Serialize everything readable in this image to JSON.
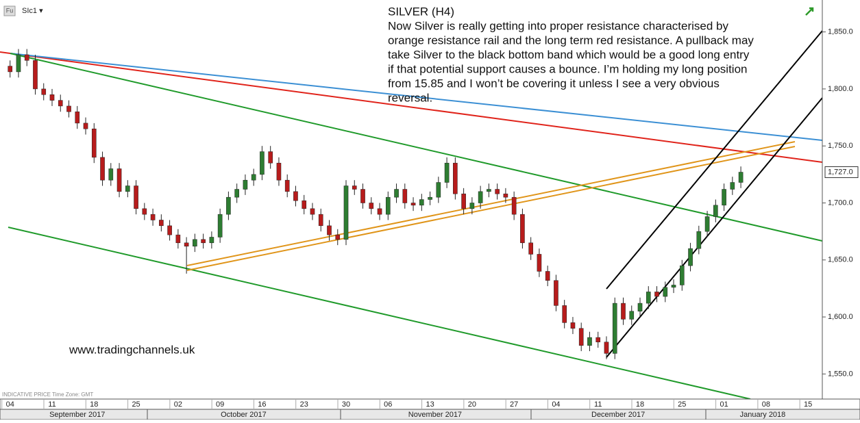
{
  "chart_data": {
    "type": "candlestick",
    "symbol_badge": "Fu",
    "symbol": "SIc1 ▾",
    "title": "SILVER (H4)",
    "annotation_lines": [
      "Now Silver is really getting into proper resistance characterised by",
      "orange resistance rail and the long term red resistance. A pullback may",
      "take Silver to the black bottom band which would be a good long entry",
      "if that potential support causes a bounce. I’m holding my long position",
      "from 15.85 and I won’t be covering  it unless I see a very obvious",
      "reversal."
    ],
    "watermark": "www.tradingchannels.uk",
    "footer": "INDICATIVE PRICE   Time Zone: GMT",
    "up_color": "#2e7d32",
    "down_color": "#b71c1c",
    "wick_color": "#222222",
    "open": [
      1820,
      1815,
      1830,
      1825,
      1800,
      1795,
      1790,
      1785,
      1780,
      1770,
      1765,
      1740,
      1720,
      1730,
      1710,
      1715,
      1695,
      1690,
      1685,
      1680,
      1672,
      1665,
      1662,
      1668,
      1665,
      1670,
      1690,
      1705,
      1712,
      1720,
      1725,
      1745,
      1735,
      1720,
      1710,
      1702,
      1695,
      1690,
      1680,
      1672,
      1668,
      1715,
      1712,
      1700,
      1695,
      1690,
      1705,
      1712,
      1700,
      1698,
      1703,
      1705,
      1718,
      1735,
      1708,
      1695,
      1700,
      1710,
      1712,
      1708,
      1705,
      1690,
      1665,
      1655,
      1640,
      1632,
      1610,
      1595,
      1590,
      1575,
      1582,
      1578,
      1568,
      1612,
      1598,
      1605,
      1612,
      1622,
      1618,
      1626,
      1628,
      1645,
      1660,
      1675,
      1688,
      1698,
      1712,
      1718
    ],
    "high": [
      1825,
      1835,
      1835,
      1830,
      1805,
      1800,
      1795,
      1790,
      1785,
      1775,
      1770,
      1745,
      1735,
      1735,
      1720,
      1720,
      1700,
      1695,
      1690,
      1685,
      1677,
      1670,
      1673,
      1673,
      1675,
      1695,
      1710,
      1717,
      1725,
      1730,
      1750,
      1750,
      1740,
      1725,
      1715,
      1707,
      1700,
      1695,
      1685,
      1677,
      1720,
      1720,
      1717,
      1705,
      1700,
      1710,
      1717,
      1717,
      1705,
      1708,
      1710,
      1723,
      1740,
      1740,
      1713,
      1705,
      1715,
      1717,
      1717,
      1713,
      1710,
      1695,
      1670,
      1660,
      1645,
      1637,
      1615,
      1600,
      1595,
      1587,
      1587,
      1583,
      1617,
      1617,
      1610,
      1617,
      1627,
      1627,
      1631,
      1633,
      1650,
      1665,
      1680,
      1693,
      1703,
      1717,
      1723,
      1732
    ],
    "low": [
      1810,
      1810,
      1820,
      1795,
      1790,
      1785,
      1780,
      1775,
      1765,
      1760,
      1735,
      1715,
      1715,
      1705,
      1705,
      1690,
      1685,
      1680,
      1675,
      1667,
      1660,
      1638,
      1657,
      1660,
      1660,
      1665,
      1685,
      1700,
      1707,
      1715,
      1720,
      1730,
      1715,
      1705,
      1697,
      1690,
      1685,
      1675,
      1667,
      1663,
      1663,
      1707,
      1695,
      1690,
      1685,
      1685,
      1700,
      1695,
      1693,
      1693,
      1698,
      1700,
      1713,
      1703,
      1690,
      1690,
      1695,
      1705,
      1703,
      1700,
      1685,
      1660,
      1650,
      1635,
      1627,
      1605,
      1590,
      1585,
      1570,
      1570,
      1573,
      1563,
      1563,
      1593,
      1593,
      1600,
      1607,
      1613,
      1613,
      1621,
      1623,
      1640,
      1655,
      1670,
      1683,
      1693,
      1707,
      1713
    ],
    "close": [
      1815,
      1830,
      1825,
      1800,
      1795,
      1790,
      1785,
      1780,
      1770,
      1765,
      1740,
      1720,
      1730,
      1710,
      1715,
      1695,
      1690,
      1685,
      1680,
      1672,
      1665,
      1662,
      1668,
      1665,
      1670,
      1690,
      1705,
      1712,
      1720,
      1725,
      1745,
      1735,
      1720,
      1710,
      1702,
      1695,
      1690,
      1680,
      1672,
      1668,
      1715,
      1712,
      1700,
      1695,
      1690,
      1705,
      1712,
      1700,
      1698,
      1703,
      1705,
      1718,
      1735,
      1708,
      1695,
      1700,
      1710,
      1712,
      1708,
      1705,
      1690,
      1665,
      1655,
      1640,
      1632,
      1610,
      1595,
      1590,
      1575,
      1582,
      1578,
      1568,
      1612,
      1598,
      1605,
      1612,
      1622,
      1618,
      1626,
      1628,
      1645,
      1660,
      1675,
      1688,
      1698,
      1712,
      1718,
      1727
    ],
    "last_price": {
      "value": 1727,
      "label": "1,727.0"
    },
    "ylim": [
      1528,
      1878
    ],
    "yticks": [
      {
        "value": 1550,
        "label": "1,550.0"
      },
      {
        "value": 1600,
        "label": "1,600.0"
      },
      {
        "value": 1650,
        "label": "1,650.0"
      },
      {
        "value": 1700,
        "label": "1,700.0"
      },
      {
        "value": 1750,
        "label": "1,750.0"
      },
      {
        "value": 1800,
        "label": "1,800.0"
      },
      {
        "value": 1850,
        "label": "1,850.0"
      }
    ],
    "xlim": [
      -1.2,
      96.7
    ],
    "xticks": [
      {
        "value": 0,
        "label": "04"
      },
      {
        "value": 5,
        "label": "11"
      },
      {
        "value": 10,
        "label": "18"
      },
      {
        "value": 15,
        "label": "25"
      },
      {
        "value": 20,
        "label": "02"
      },
      {
        "value": 25,
        "label": "09"
      },
      {
        "value": 30,
        "label": "16"
      },
      {
        "value": 35,
        "label": "23"
      },
      {
        "value": 40,
        "label": "30"
      },
      {
        "value": 45,
        "label": "06"
      },
      {
        "value": 50,
        "label": "13"
      },
      {
        "value": 55,
        "label": "20"
      },
      {
        "value": 60,
        "label": "27"
      },
      {
        "value": 65,
        "label": "04"
      },
      {
        "value": 70,
        "label": "11"
      },
      {
        "value": 75,
        "label": "18"
      },
      {
        "value": 80,
        "label": "25"
      },
      {
        "value": 85,
        "label": "01"
      },
      {
        "value": 90,
        "label": "08"
      },
      {
        "value": 95,
        "label": "15"
      }
    ],
    "month_ticks": [
      {
        "value": 8,
        "label": "September 2017"
      },
      {
        "value": 27.8,
        "label": "October 2017"
      },
      {
        "value": 50.6,
        "label": "November 2017"
      },
      {
        "value": 72.4,
        "label": "December 2017"
      },
      {
        "value": 89.6,
        "label": "January 2018"
      }
    ]
  }
}
